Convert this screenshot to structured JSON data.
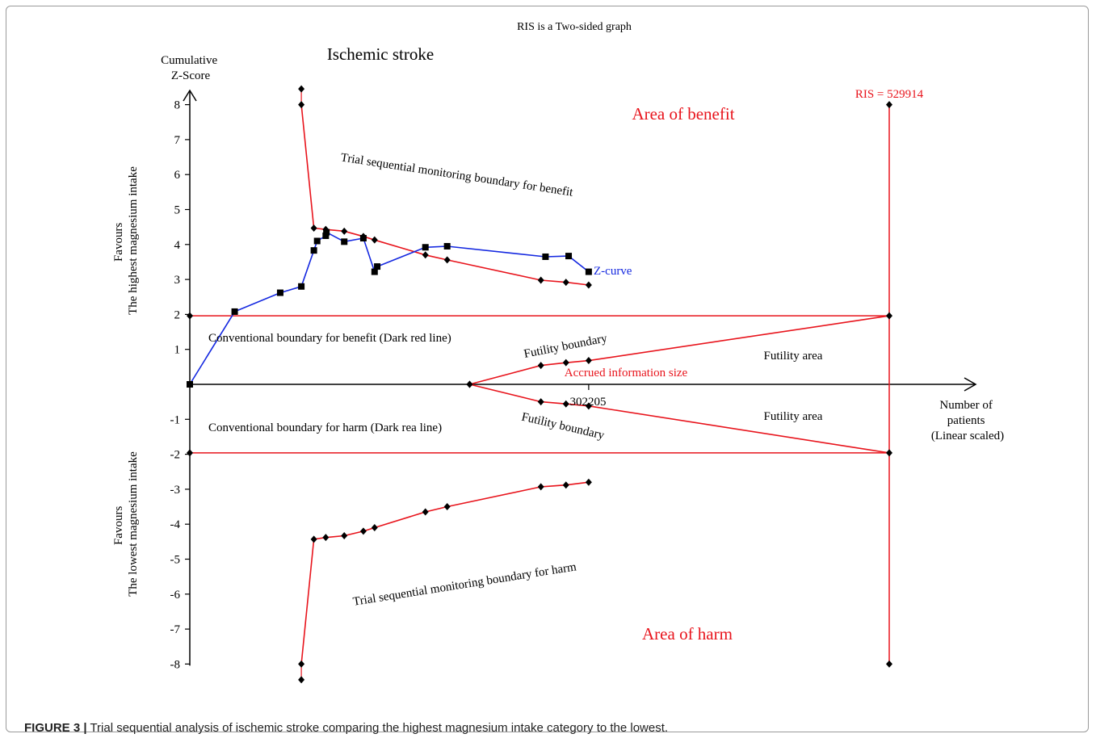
{
  "caption": {
    "label": "FIGURE 3 |",
    "text": " Trial sequential analysis of ischemic stroke comparing the highest magnesium intake category to the lowest."
  },
  "colors": {
    "red": "#e8141c",
    "blue": "#1428e0",
    "black": "#000000"
  },
  "chart_data": {
    "type": "line",
    "title": "RIS is a Two-sided graph",
    "subtitle": "Ischemic stroke",
    "ylabel": [
      "Cumulative",
      "Z-Score"
    ],
    "xlabel": [
      "Number of",
      "patients",
      "(Linear scaled)"
    ],
    "favours_top": [
      "Favours",
      "The highest magnesium intake"
    ],
    "favours_bottom": [
      "Favours",
      "The lowest magnesium intake"
    ],
    "xlim": [
      0,
      529914
    ],
    "ylim": [
      -8,
      8
    ],
    "yticks": [
      8,
      7,
      6,
      5,
      4,
      3,
      2,
      1,
      -1,
      -2,
      -3,
      -4,
      -5,
      -6,
      -7,
      -8
    ],
    "x_marker": {
      "value": 302205,
      "label": "302205",
      "name": "Accrued information size"
    },
    "ris": {
      "value": 529914,
      "label": "RIS = 529914"
    },
    "conventional_boundary": 1.96,
    "series": [
      {
        "name": "Z-curve",
        "marker": "square",
        "points": [
          [
            0,
            0
          ],
          [
            34000,
            2.08
          ],
          [
            68500,
            2.62
          ],
          [
            84500,
            2.8
          ],
          [
            94000,
            3.83
          ],
          [
            96500,
            4.1
          ],
          [
            103000,
            4.25
          ],
          [
            103500,
            4.35
          ],
          [
            117000,
            4.08
          ],
          [
            131500,
            4.18
          ],
          [
            140000,
            3.22
          ],
          [
            142000,
            3.37
          ],
          [
            178500,
            3.92
          ],
          [
            195000,
            3.95
          ],
          [
            269500,
            3.65
          ],
          [
            287000,
            3.67
          ],
          [
            302205,
            3.22
          ]
        ]
      },
      {
        "name": "Trial sequential monitoring boundary for benefit",
        "marker": "diamond",
        "points": [
          [
            84500,
            8.0
          ],
          [
            94000,
            4.47
          ],
          [
            103000,
            4.43
          ],
          [
            117000,
            4.38
          ],
          [
            131500,
            4.23
          ],
          [
            140000,
            4.13
          ],
          [
            178500,
            3.7
          ],
          [
            195000,
            3.56
          ],
          [
            266000,
            2.98
          ],
          [
            285000,
            2.92
          ],
          [
            302205,
            2.84
          ]
        ]
      },
      {
        "name": "Trial sequential monitoring boundary for harm",
        "marker": "diamond",
        "points": [
          [
            84500,
            -8.0
          ],
          [
            94000,
            -4.43
          ],
          [
            103000,
            -4.38
          ],
          [
            117000,
            -4.33
          ],
          [
            131500,
            -4.2
          ],
          [
            140000,
            -4.1
          ],
          [
            178500,
            -3.65
          ],
          [
            195000,
            -3.5
          ],
          [
            266000,
            -2.93
          ],
          [
            285000,
            -2.88
          ],
          [
            302205,
            -2.8
          ]
        ]
      },
      {
        "name": "Futility boundary (upper)",
        "marker": "diamond",
        "points": [
          [
            212000,
            0
          ],
          [
            266000,
            0.54
          ],
          [
            285000,
            0.62
          ],
          [
            302205,
            0.68
          ],
          [
            529914,
            1.96
          ]
        ]
      },
      {
        "name": "Futility boundary (lower)",
        "marker": "diamond",
        "points": [
          [
            212000,
            0
          ],
          [
            266000,
            -0.5
          ],
          [
            285000,
            -0.56
          ],
          [
            302205,
            -0.62
          ],
          [
            529914,
            -1.96
          ]
        ]
      }
    ],
    "extra_points": [
      [
        84500,
        8.45
      ],
      [
        84500,
        -8.45
      ],
      [
        0,
        1.96
      ],
      [
        0,
        -1.96
      ],
      [
        529914,
        8.0
      ],
      [
        529914,
        -8.0
      ]
    ],
    "annotations": {
      "area_benefit": "Area of benefit",
      "area_harm": "Area of harm",
      "tsmb_benefit": "Trial sequential monitoring boundary for benefit",
      "tsmb_harm": "Trial sequential monitoring boundary for harm",
      "conv_benefit": "Conventional boundary for benefit (Dark red line)",
      "conv_harm": "Conventional boundary for harm (Dark rea line)",
      "futility_boundary": "Futility boundary",
      "futility_area": "Futility area",
      "z_curve": "Z-curve"
    }
  }
}
